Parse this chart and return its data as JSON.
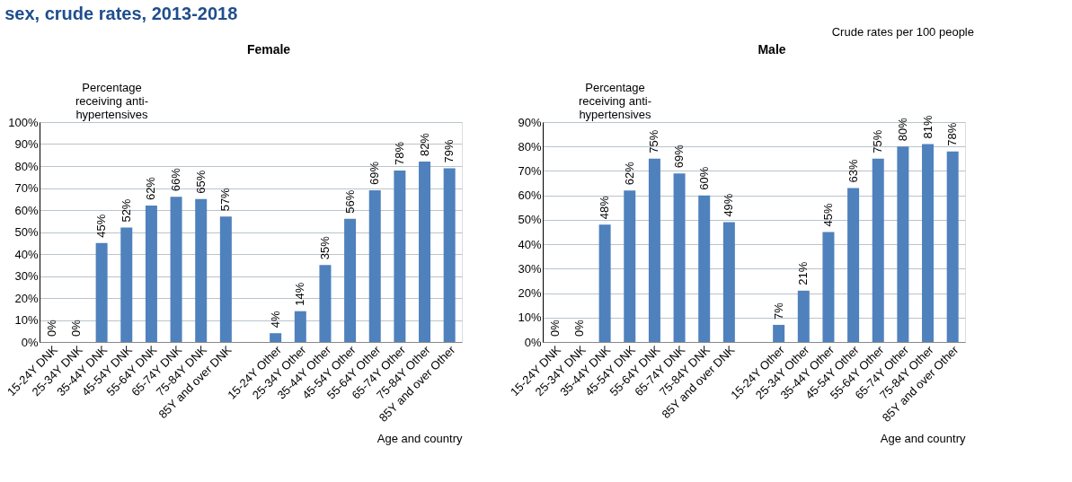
{
  "chart_data": [
    {
      "type": "bar",
      "title": "sex, crude rates, 2013-2018",
      "subtitle": "Female",
      "xlabel": "Age and country",
      "ylabel": "Percentage receiving anti-hypertensives",
      "categories": [
        "15-24Y DNK",
        "25-34Y DNK",
        "35-44Y DNK",
        "45-54Y DNK",
        "55-64Y DNK",
        "65-74Y DNK",
        "75-84Y DNK",
        "85Y and over DNK",
        null,
        "15-24Y Other",
        "25-34Y Other",
        "35-44Y Other",
        "45-54Y Other",
        "55-64Y Other",
        "65-74Y Other",
        "75-84Y Other",
        "85Y and over Other"
      ],
      "series": [
        {
          "color": "#4f81bd",
          "values": [
            0,
            0,
            45,
            52,
            62,
            66,
            65,
            57,
            null,
            4,
            14,
            35,
            56,
            69,
            78,
            82,
            79
          ],
          "value_labels": [
            "0%",
            "0%",
            "45%",
            "52%",
            "62%",
            "66%",
            "65%",
            "57%",
            null,
            "4%",
            "14%",
            "35%",
            "56%",
            "69%",
            "78%",
            "82%",
            "79%"
          ]
        }
      ],
      "ylim": [
        0,
        100
      ],
      "yticks": [
        {
          "value": 0,
          "label": "0%"
        },
        {
          "value": 10,
          "label": "10%"
        },
        {
          "value": 20,
          "label": "20%"
        },
        {
          "value": 30,
          "label": "30%"
        },
        {
          "value": 40,
          "label": "40%"
        },
        {
          "value": 50,
          "label": "50%"
        },
        {
          "value": 60,
          "label": "60%"
        },
        {
          "value": 70,
          "label": "70%"
        },
        {
          "value": 80,
          "label": "80%"
        },
        {
          "value": 90,
          "label": "90%"
        },
        {
          "value": 100,
          "label": "100%"
        }
      ],
      "grid": "y"
    },
    {
      "type": "bar",
      "subtitle": "Male",
      "xlabel": "Age and country",
      "ylabel": "Percentage receiving anti-hypertensives",
      "annotations": [
        "Crude rates per 100 people"
      ],
      "categories": [
        "15-24Y DNK",
        "25-34Y DNK",
        "35-44Y DNK",
        "45-54Y DNK",
        "55-64Y DNK",
        "65-74Y DNK",
        "75-84Y DNK",
        "85Y and over DNK",
        null,
        "15-24Y Other",
        "25-34Y Other",
        "35-44Y Other",
        "45-54Y Other",
        "55-64Y Other",
        "65-74Y Other",
        "75-84Y Other",
        "85Y and over Other"
      ],
      "series": [
        {
          "color": "#4f81bd",
          "values": [
            0,
            0,
            48,
            62,
            75,
            69,
            60,
            49,
            null,
            7,
            21,
            45,
            63,
            75,
            80,
            81,
            78
          ],
          "value_labels": [
            "0%",
            "0%",
            "48%",
            "62%",
            "75%",
            "69%",
            "60%",
            "49%",
            null,
            "7%",
            "21%",
            "45%",
            "63%",
            "75%",
            "80%",
            "81%",
            "78%"
          ]
        }
      ],
      "ylim": [
        0,
        90
      ],
      "yticks": [
        {
          "value": 0,
          "label": "0%"
        },
        {
          "value": 10,
          "label": "10%"
        },
        {
          "value": 20,
          "label": "20%"
        },
        {
          "value": 30,
          "label": "30%"
        },
        {
          "value": 40,
          "label": "40%"
        },
        {
          "value": 50,
          "label": "50%"
        },
        {
          "value": 60,
          "label": "60%"
        },
        {
          "value": 70,
          "label": "70%"
        },
        {
          "value": 80,
          "label": "80%"
        },
        {
          "value": 90,
          "label": "90%"
        }
      ],
      "grid": "y"
    }
  ]
}
